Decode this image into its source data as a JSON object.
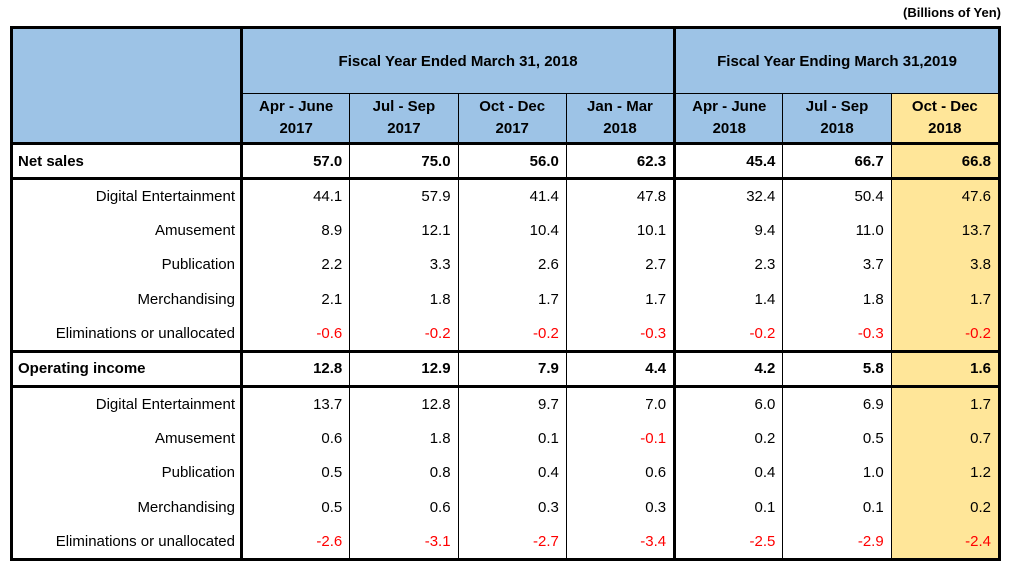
{
  "units_label": "(Billions of Yen)",
  "colors": {
    "header_blue": "#9DC3E6",
    "highlight_yellow": "#FFE699",
    "negative_red": "#FF0000",
    "border_black": "#000000"
  },
  "table": {
    "fiscal_groups": [
      {
        "label": "Fiscal Year Ended March 31, 2018",
        "colspan": 4
      },
      {
        "label": "Fiscal Year Ending March 31,2019",
        "colspan": 3
      }
    ],
    "columns": [
      {
        "quarter": "Apr - June",
        "year": "2017",
        "highlight": false,
        "year_start": false
      },
      {
        "quarter": "Jul - Sep",
        "year": "2017",
        "highlight": false,
        "year_start": false
      },
      {
        "quarter": "Oct - Dec",
        "year": "2017",
        "highlight": false,
        "year_start": false
      },
      {
        "quarter": "Jan - Mar",
        "year": "2018",
        "highlight": false,
        "year_start": false
      },
      {
        "quarter": "Apr - June",
        "year": "2018",
        "highlight": false,
        "year_start": true
      },
      {
        "quarter": "Jul - Sep",
        "year": "2018",
        "highlight": false,
        "year_start": false
      },
      {
        "quarter": "Oct - Dec",
        "year": "2018",
        "highlight": true,
        "year_start": false
      }
    ],
    "rows": [
      {
        "label": "Net sales",
        "type": "total",
        "values": [
          "57.0",
          "75.0",
          "56.0",
          "62.3",
          "45.4",
          "66.7",
          "66.8"
        ]
      },
      {
        "label": "Digital Entertainment",
        "type": "segment",
        "values": [
          "44.1",
          "57.9",
          "41.4",
          "47.8",
          "32.4",
          "50.4",
          "47.6"
        ]
      },
      {
        "label": "Amusement",
        "type": "segment",
        "values": [
          "8.9",
          "12.1",
          "10.4",
          "10.1",
          "9.4",
          "11.0",
          "13.7"
        ]
      },
      {
        "label": "Publication",
        "type": "segment",
        "values": [
          "2.2",
          "3.3",
          "2.6",
          "2.7",
          "2.3",
          "3.7",
          "3.8"
        ]
      },
      {
        "label": "Merchandising",
        "type": "segment",
        "values": [
          "2.1",
          "1.8",
          "1.7",
          "1.7",
          "1.4",
          "1.8",
          "1.7"
        ]
      },
      {
        "label": "Eliminations or unallocated",
        "type": "segment",
        "values": [
          "-0.6",
          "-0.2",
          "-0.2",
          "-0.3",
          "-0.2",
          "-0.3",
          "-0.2"
        ]
      },
      {
        "label": "Operating income",
        "type": "total",
        "values": [
          "12.8",
          "12.9",
          "7.9",
          "4.4",
          "4.2",
          "5.8",
          "1.6"
        ]
      },
      {
        "label": "Digital Entertainment",
        "type": "segment",
        "values": [
          "13.7",
          "12.8",
          "9.7",
          "7.0",
          "6.0",
          "6.9",
          "1.7"
        ]
      },
      {
        "label": "Amusement",
        "type": "segment",
        "values": [
          "0.6",
          "1.8",
          "0.1",
          "-0.1",
          "0.2",
          "0.5",
          "0.7"
        ]
      },
      {
        "label": "Publication",
        "type": "segment",
        "values": [
          "0.5",
          "0.8",
          "0.4",
          "0.6",
          "0.4",
          "1.0",
          "1.2"
        ]
      },
      {
        "label": "Merchandising",
        "type": "segment",
        "values": [
          "0.5",
          "0.6",
          "0.3",
          "0.3",
          "0.1",
          "0.1",
          "0.2"
        ]
      },
      {
        "label": "Eliminations or unallocated",
        "type": "segment",
        "values": [
          "-2.6",
          "-3.1",
          "-2.7",
          "-3.4",
          "-2.5",
          "-2.9",
          "-2.4"
        ]
      }
    ]
  }
}
